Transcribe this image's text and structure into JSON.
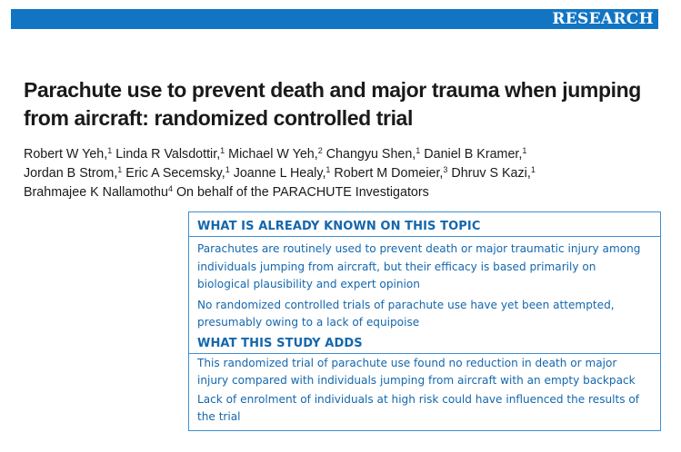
{
  "header": {
    "section_label": "RESEARCH"
  },
  "article": {
    "title_lines": [
      "Parachute use to prevent death and major trauma when jumping",
      "from aircraft: randomized controlled trial"
    ],
    "authors": [
      {
        "name": "Robert W Yeh,",
        "aff": "1"
      },
      {
        "name": "Linda R Valsdottir,",
        "aff": "1"
      },
      {
        "name": "Michael W Yeh,",
        "aff": "2"
      },
      {
        "name": "Changyu Shen,",
        "aff": "1"
      },
      {
        "name": "Daniel B Kramer,",
        "aff": "1"
      },
      {
        "name": "Jordan B Strom,",
        "aff": "1"
      },
      {
        "name": "Eric A Secemsky,",
        "aff": "1"
      },
      {
        "name": "Joanne L Healy,",
        "aff": "1"
      },
      {
        "name": "Robert M Domeier,",
        "aff": "3"
      },
      {
        "name": "Dhruv S Kazi,",
        "aff": "1"
      },
      {
        "name": "Brahmajee K Nallamothu",
        "aff": "4"
      }
    ],
    "on_behalf": "On behalf of the PARACHUTE Investigators"
  },
  "summary_box": {
    "known": {
      "heading": "WHAT IS ALREADY KNOWN ON THIS TOPIC",
      "paragraphs": [
        {
          "lines": [
            "Parachutes are routinely used to prevent death or major traumatic injury among",
            "individuals jumping from aircraft, but their efficacy is based primarily on",
            "biological plausibility and expert opinion"
          ]
        },
        {
          "lines": [
            "No randomized controlled trials of parachute use have yet been attempted,",
            "presumably owing to a lack of equipoise"
          ]
        }
      ]
    },
    "adds": {
      "heading": "WHAT THIS STUDY ADDS",
      "paragraphs": [
        {
          "lines": [
            "This randomized trial of parachute use found no reduction in death or major",
            "injury compared with individuals jumping from aircraft with an empty backpack"
          ]
        },
        {
          "lines": [
            "Lack of enrolment of individuals at high risk could have influenced the results of",
            "the trial"
          ]
        }
      ]
    }
  }
}
